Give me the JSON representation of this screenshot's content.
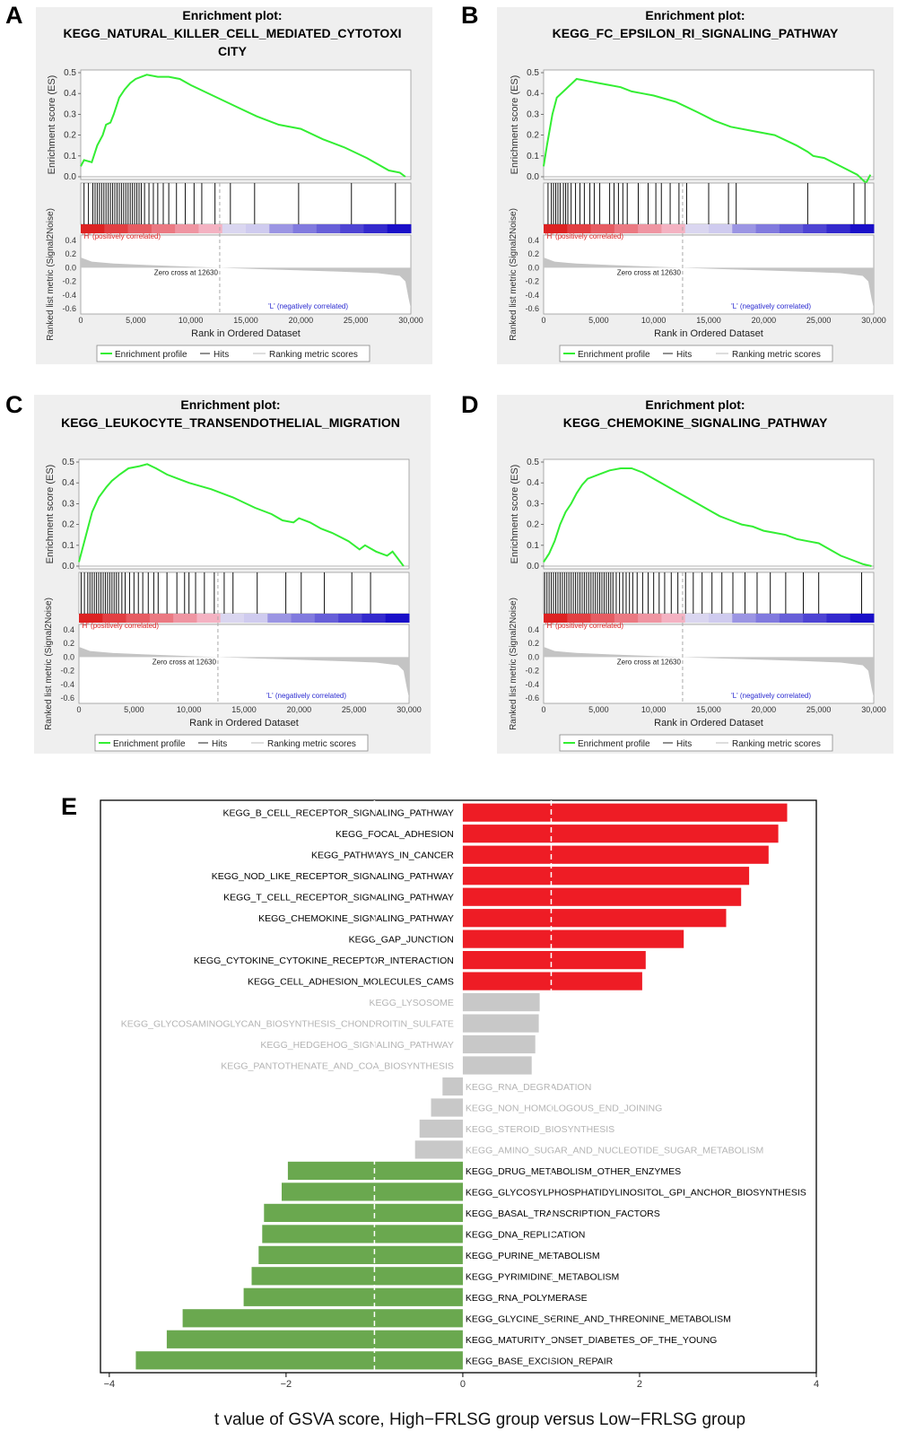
{
  "panels": [
    {
      "letter": "A",
      "title_line1": "Enrichment plot:",
      "title_line2": "KEGG_NATURAL_KILLER_CELL_MEDIATED_CYTOTOXI",
      "title_line3": "CITY",
      "es_ticks": [
        "0.0",
        "0.1",
        "0.2",
        "0.3",
        "0.4",
        "0.5"
      ],
      "es_max": 0.5,
      "es_curve": [
        [
          0,
          0.05
        ],
        [
          300,
          0.08
        ],
        [
          1000,
          0.07
        ],
        [
          1500,
          0.15
        ],
        [
          2000,
          0.2
        ],
        [
          2300,
          0.25
        ],
        [
          2700,
          0.26
        ],
        [
          3000,
          0.3
        ],
        [
          3500,
          0.38
        ],
        [
          4000,
          0.42
        ],
        [
          4500,
          0.45
        ],
        [
          5000,
          0.47
        ],
        [
          6000,
          0.49
        ],
        [
          7000,
          0.48
        ],
        [
          8000,
          0.48
        ],
        [
          9000,
          0.47
        ],
        [
          10000,
          0.44
        ],
        [
          12000,
          0.39
        ],
        [
          14000,
          0.34
        ],
        [
          16000,
          0.29
        ],
        [
          18000,
          0.25
        ],
        [
          20000,
          0.23
        ],
        [
          22000,
          0.18
        ],
        [
          24000,
          0.14
        ],
        [
          26000,
          0.09
        ],
        [
          28000,
          0.03
        ],
        [
          29000,
          0.02
        ],
        [
          29500,
          0.0
        ]
      ],
      "hits": [
        300,
        700,
        1100,
        1300,
        1500,
        1700,
        1900,
        2100,
        2300,
        2500,
        2700,
        2900,
        3100,
        3300,
        3500,
        3700,
        3900,
        4100,
        4300,
        4500,
        4700,
        4900,
        5100,
        5300,
        5500,
        5800,
        6200,
        6600,
        7000,
        7500,
        8000,
        8700,
        9500,
        10300,
        11000,
        12200,
        13600,
        15800,
        19800,
        24600,
        28600
      ],
      "zero_cross": 12630
    },
    {
      "letter": "B",
      "title_line1": "Enrichment plot:",
      "title_line2": "KEGG_FC_EPSILON_RI_SIGNALING_PATHWAY",
      "title_line3": "",
      "es_ticks": [
        "0.0",
        "0.1",
        "0.2",
        "0.3",
        "0.4",
        "0.5"
      ],
      "es_max": 0.5,
      "es_curve": [
        [
          0,
          0.05
        ],
        [
          300,
          0.15
        ],
        [
          800,
          0.3
        ],
        [
          1200,
          0.38
        ],
        [
          2000,
          0.42
        ],
        [
          3000,
          0.47
        ],
        [
          4000,
          0.46
        ],
        [
          5000,
          0.45
        ],
        [
          6000,
          0.44
        ],
        [
          7000,
          0.43
        ],
        [
          8000,
          0.41
        ],
        [
          9000,
          0.4
        ],
        [
          10000,
          0.39
        ],
        [
          12000,
          0.36
        ],
        [
          14000,
          0.31
        ],
        [
          15500,
          0.27
        ],
        [
          17000,
          0.24
        ],
        [
          19000,
          0.22
        ],
        [
          21000,
          0.2
        ],
        [
          23000,
          0.15
        ],
        [
          24000,
          0.12
        ],
        [
          24500,
          0.1
        ],
        [
          25500,
          0.09
        ],
        [
          27000,
          0.05
        ],
        [
          28500,
          0.01
        ],
        [
          29300,
          -0.03
        ],
        [
          29700,
          0.01
        ]
      ],
      "hits": [
        400,
        700,
        900,
        1100,
        1300,
        1500,
        1800,
        2000,
        2200,
        2500,
        2900,
        3300,
        3700,
        4200,
        4600,
        5100,
        6000,
        6400,
        6800,
        7200,
        7600,
        8600,
        9500,
        10200,
        10700,
        11500,
        12300,
        13000,
        15000,
        16800,
        17500,
        24000,
        28200,
        29200
      ],
      "zero_cross": 12630
    },
    {
      "letter": "C",
      "title_line1": "Enrichment plot:",
      "title_line2": "KEGG_LEUKOCYTE_TRANSENDOTHELIAL_MIGRATION",
      "title_line3": "",
      "es_ticks": [
        "0.0",
        "0.1",
        "0.2",
        "0.3",
        "0.4",
        "0.5"
      ],
      "es_max": 0.5,
      "es_curve": [
        [
          0,
          0.02
        ],
        [
          300,
          0.08
        ],
        [
          800,
          0.18
        ],
        [
          1200,
          0.26
        ],
        [
          1800,
          0.33
        ],
        [
          2500,
          0.38
        ],
        [
          3000,
          0.41
        ],
        [
          3700,
          0.44
        ],
        [
          4500,
          0.47
        ],
        [
          5500,
          0.48
        ],
        [
          6200,
          0.49
        ],
        [
          7000,
          0.47
        ],
        [
          8000,
          0.44
        ],
        [
          9000,
          0.42
        ],
        [
          10000,
          0.4
        ],
        [
          12000,
          0.37
        ],
        [
          14000,
          0.33
        ],
        [
          16000,
          0.28
        ],
        [
          17500,
          0.25
        ],
        [
          18500,
          0.22
        ],
        [
          19500,
          0.21
        ],
        [
          20000,
          0.23
        ],
        [
          21000,
          0.21
        ],
        [
          22000,
          0.18
        ],
        [
          23000,
          0.16
        ],
        [
          24500,
          0.12
        ],
        [
          25500,
          0.08
        ],
        [
          26000,
          0.1
        ],
        [
          27000,
          0.07
        ],
        [
          28000,
          0.05
        ],
        [
          28500,
          0.07
        ],
        [
          29500,
          0.0
        ]
      ],
      "hits": [
        200,
        500,
        800,
        1000,
        1200,
        1400,
        1600,
        1800,
        2000,
        2200,
        2400,
        2600,
        2800,
        3000,
        3200,
        3400,
        3600,
        3900,
        4200,
        4600,
        5000,
        5400,
        5800,
        6300,
        6800,
        7200,
        8000,
        8900,
        9600,
        10000,
        10600,
        11400,
        12300,
        13200,
        14000,
        16200,
        18800,
        20200,
        22300,
        24800,
        26500
      ],
      "zero_cross": 12630
    },
    {
      "letter": "D",
      "title_line1": "Enrichment plot:",
      "title_line2": "KEGG_CHEMOKINE_SIGNALING_PATHWAY",
      "title_line3": "",
      "es_ticks": [
        "0.0",
        "0.1",
        "0.2",
        "0.3",
        "0.4",
        "0.5"
      ],
      "es_max": 0.5,
      "es_curve": [
        [
          0,
          0.02
        ],
        [
          500,
          0.06
        ],
        [
          1000,
          0.12
        ],
        [
          1500,
          0.2
        ],
        [
          2000,
          0.26
        ],
        [
          2500,
          0.3
        ],
        [
          3000,
          0.35
        ],
        [
          3500,
          0.39
        ],
        [
          4000,
          0.42
        ],
        [
          5000,
          0.44
        ],
        [
          6000,
          0.46
        ],
        [
          7000,
          0.47
        ],
        [
          8000,
          0.47
        ],
        [
          9000,
          0.45
        ],
        [
          10000,
          0.42
        ],
        [
          11000,
          0.39
        ],
        [
          12000,
          0.36
        ],
        [
          13000,
          0.33
        ],
        [
          14000,
          0.3
        ],
        [
          15000,
          0.27
        ],
        [
          16000,
          0.24
        ],
        [
          17000,
          0.22
        ],
        [
          18000,
          0.2
        ],
        [
          19000,
          0.19
        ],
        [
          20000,
          0.17
        ],
        [
          21000,
          0.16
        ],
        [
          22000,
          0.15
        ],
        [
          23000,
          0.13
        ],
        [
          24000,
          0.12
        ],
        [
          25000,
          0.11
        ],
        [
          26000,
          0.08
        ],
        [
          27000,
          0.05
        ],
        [
          28000,
          0.03
        ],
        [
          29000,
          0.01
        ],
        [
          29800,
          0.0
        ]
      ],
      "hits": [
        100,
        300,
        500,
        700,
        900,
        1100,
        1300,
        1500,
        1700,
        1900,
        2100,
        2300,
        2500,
        2700,
        2900,
        3100,
        3300,
        3500,
        3700,
        3900,
        4100,
        4300,
        4500,
        4700,
        4900,
        5100,
        5300,
        5500,
        5700,
        5900,
        6100,
        6300,
        6600,
        6900,
        7200,
        7500,
        7800,
        8100,
        8500,
        9000,
        9500,
        10000,
        10500,
        11000,
        11600,
        12200,
        12900,
        13600,
        14400,
        15300,
        16200,
        17200,
        18300,
        19400,
        20600,
        22000,
        23600,
        25000,
        28900
      ],
      "zero_cross": 12630
    }
  ],
  "gsea_common": {
    "es_ylabel": "Enrichment score (ES)",
    "metric_ylabel": "Ranked list metric (Signal2Noise)",
    "xlabel": "Rank in Ordered Dataset",
    "x_ticks": [
      "0",
      "5,000",
      "10,000",
      "15,000",
      "20,000",
      "25,000",
      "30,000"
    ],
    "metric_ticks": [
      "0.4",
      "0.2",
      "0.0",
      "-0.2",
      "-0.4",
      "-0.6"
    ],
    "pos_label": "'H' (positively correlated)",
    "neg_label": "'L' (negatively correlated)",
    "zero_cross_label": "Zero cross at 12630",
    "legend_enrichment": "Enrichment profile",
    "legend_hits": "Hits",
    "legend_ranking": "Ranking metric scores",
    "curve_color": "#33ee33",
    "pos_color": "#dd2222",
    "neg_color": "#1a0fc8"
  },
  "panel_e": {
    "letter": "E"
  },
  "chart_data": [
    {
      "type": "line",
      "title": "Enrichment plot: KEGG_NATURAL_KILLER_CELL_MEDIATED_CYTOTOXICITY",
      "xlabel": "Rank in Ordered Dataset",
      "ylabel": "Enrichment score (ES)",
      "ylim": [
        0,
        0.5
      ],
      "xlim": [
        0,
        30000
      ],
      "x": [
        0,
        2000,
        4000,
        6000,
        8000,
        10000,
        14000,
        18000,
        22000,
        26000,
        29500
      ],
      "values": [
        0.05,
        0.2,
        0.42,
        0.49,
        0.48,
        0.44,
        0.34,
        0.25,
        0.18,
        0.09,
        0.0
      ]
    },
    {
      "type": "line",
      "title": "Enrichment plot: KEGG_FC_EPSILON_RI_SIGNALING_PATHWAY",
      "xlabel": "Rank in Ordered Dataset",
      "ylabel": "Enrichment score (ES)",
      "ylim": [
        0,
        0.5
      ],
      "xlim": [
        0,
        30000
      ],
      "x": [
        0,
        1200,
        3000,
        6000,
        10000,
        14000,
        19000,
        24000,
        27000,
        29300,
        29700
      ],
      "values": [
        0.05,
        0.38,
        0.47,
        0.44,
        0.39,
        0.31,
        0.22,
        0.12,
        0.05,
        -0.03,
        0.01
      ]
    },
    {
      "type": "line",
      "title": "Enrichment plot: KEGG_LEUKOCYTE_TRANSENDOTHELIAL_MIGRATION",
      "xlabel": "Rank in Ordered Dataset",
      "ylabel": "Enrichment score (ES)",
      "ylim": [
        0,
        0.5
      ],
      "xlim": [
        0,
        30000
      ],
      "x": [
        0,
        1800,
        4500,
        6200,
        10000,
        14000,
        19500,
        23000,
        26000,
        28500,
        29500
      ],
      "values": [
        0.02,
        0.33,
        0.47,
        0.49,
        0.4,
        0.33,
        0.21,
        0.16,
        0.1,
        0.07,
        0.0
      ]
    },
    {
      "type": "line",
      "title": "Enrichment plot: KEGG_CHEMOKINE_SIGNALING_PATHWAY",
      "xlabel": "Rank in Ordered Dataset",
      "ylabel": "Enrichment score (ES)",
      "ylim": [
        0,
        0.5
      ],
      "xlim": [
        0,
        30000
      ],
      "x": [
        0,
        2000,
        4000,
        7000,
        10000,
        14000,
        18000,
        22000,
        26000,
        29800
      ],
      "values": [
        0.02,
        0.26,
        0.42,
        0.47,
        0.42,
        0.3,
        0.2,
        0.15,
        0.08,
        0.0
      ]
    },
    {
      "type": "bar",
      "orientation": "horizontal",
      "xlabel": "t value of GSVA score, High−FRLSG group versus Low−FRLSG group",
      "xlim": [
        -4.1,
        4.0
      ],
      "x_ticks": [
        "−4",
        "−2",
        "0",
        "2",
        "4"
      ],
      "threshold": [
        -1.0,
        1.0
      ],
      "categories": [
        "KEGG_B_CELL_RECEPTOR_SIGNALING_PATHWAY",
        "KEGG_FOCAL_ADHESION",
        "KEGG_PATHWAYS_IN_CANCER",
        "KEGG_NOD_LIKE_RECEPTOR_SIGNALING_PATHWAY",
        "KEGG_T_CELL_RECEPTOR_SIGNALING_PATHWAY",
        "KEGG_CHEMOKINE_SIGNALING_PATHWAY",
        "KEGG_GAP_JUNCTION",
        "KEGG_CYTOKINE_CYTOKINE_RECEPTOR_INTERACTION",
        "KEGG_CELL_ADHESION_MOLECULES_CAMS",
        "KEGG_LYSOSOME",
        "KEGG_GLYCOSAMINOGLYCAN_BIOSYNTHESIS_CHONDROITIN_SULFATE",
        "KEGG_HEDGEHOG_SIGNALING_PATHWAY",
        "KEGG_PANTOTHENATE_AND_COA_BIOSYNTHESIS",
        "KEGG_RNA_DEGRADATION",
        "KEGG_NON_HOMOLOGOUS_END_JOINING",
        "KEGG_STEROID_BIOSYNTHESIS",
        "KEGG_AMINO_SUGAR_AND_NUCLEOTIDE_SUGAR_METABOLISM",
        "KEGG_DRUG_METABOLISM_OTHER_ENZYMES",
        "KEGG_GLYCOSYLPHOSPHATIDYLINOSITOL_GPI_ANCHOR_BIOSYNTHESIS",
        "KEGG_BASAL_TRANSCRIPTION_FACTORS",
        "KEGG_DNA_REPLICATION",
        "KEGG_PURINE_METABOLISM",
        "KEGG_PYRIMIDINE_METABOLISM",
        "KEGG_RNA_POLYMERASE",
        "KEGG_GLYCINE_SERINE_AND_THREONINE_METABOLISM",
        "KEGG_MATURITY_ONSET_DIABETES_OF_THE_YOUNG",
        "KEGG_BASE_EXCISION_REPAIR"
      ],
      "values": [
        3.67,
        3.57,
        3.46,
        3.24,
        3.15,
        2.98,
        2.5,
        2.07,
        2.03,
        0.87,
        0.86,
        0.82,
        0.78,
        -0.23,
        -0.36,
        -0.49,
        -0.54,
        -1.98,
        -2.05,
        -2.25,
        -2.27,
        -2.31,
        -2.39,
        -2.48,
        -3.17,
        -3.35,
        -3.7
      ],
      "groups": [
        "up",
        "up",
        "up",
        "up",
        "up",
        "up",
        "up",
        "up",
        "up",
        "ns",
        "ns",
        "ns",
        "ns",
        "ns",
        "ns",
        "ns",
        "ns",
        "down",
        "down",
        "down",
        "down",
        "down",
        "down",
        "down",
        "down",
        "down",
        "down"
      ],
      "colors": {
        "up": "#ee1c25",
        "ns": "#c8c8c8",
        "down": "#6aa84f",
        "up_label": "#000000",
        "ns_label": "#b4b4b4",
        "down_label": "#000000"
      }
    }
  ]
}
